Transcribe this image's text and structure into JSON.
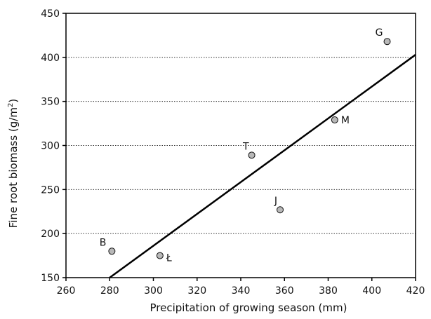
{
  "chart_data": {
    "type": "scatter",
    "title": "",
    "xlabel": "Precipitation of growing season (mm)",
    "ylabel_main": "Fine root biomass (g/m",
    "ylabel_sup": "2",
    "ylabel_close": ")",
    "xlim": [
      260,
      420
    ],
    "ylim": [
      150,
      450
    ],
    "x_ticks": [
      260,
      280,
      300,
      320,
      340,
      360,
      380,
      400,
      420
    ],
    "y_ticks": [
      150,
      200,
      250,
      300,
      350,
      400,
      450
    ],
    "grid": "horizontal-dotted",
    "points": [
      {
        "label": "B",
        "x": 281,
        "y": 180
      },
      {
        "label": "Ł",
        "x": 303,
        "y": 175
      },
      {
        "label": "T",
        "x": 345,
        "y": 289
      },
      {
        "label": "J",
        "x": 358,
        "y": 227
      },
      {
        "label": "M",
        "x": 383,
        "y": 329
      },
      {
        "label": "G",
        "x": 407,
        "y": 418
      }
    ],
    "trendline": {
      "x": [
        280,
        420
      ],
      "y": [
        150,
        403
      ]
    },
    "colors": {
      "point_fill": "#b8b8b8",
      "point_stroke": "#111111",
      "line": "#000000",
      "grid": "#333333"
    }
  }
}
